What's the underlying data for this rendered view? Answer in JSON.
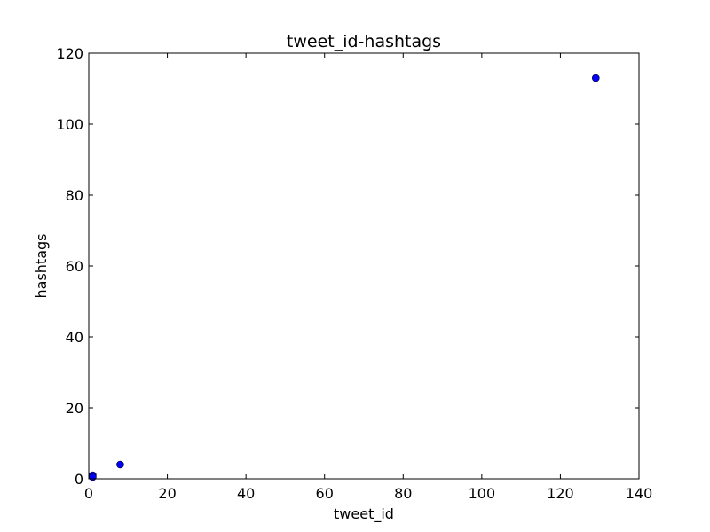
{
  "chart_data": {
    "type": "scatter",
    "title": "tweet_id-hashtags",
    "xlabel": "tweet_id",
    "ylabel": "hashtags",
    "xlim": [
      0,
      140
    ],
    "ylim": [
      0,
      120
    ],
    "xticks": [
      "0",
      "20",
      "40",
      "60",
      "80",
      "100",
      "120",
      "140"
    ],
    "yticks": [
      "0",
      "20",
      "40",
      "60",
      "80",
      "100",
      "120"
    ],
    "grid": false,
    "series": [
      {
        "color": "#0000ff",
        "x": [
          1,
          1,
          8,
          129
        ],
        "y": [
          1,
          0.5,
          4,
          113
        ]
      }
    ]
  }
}
